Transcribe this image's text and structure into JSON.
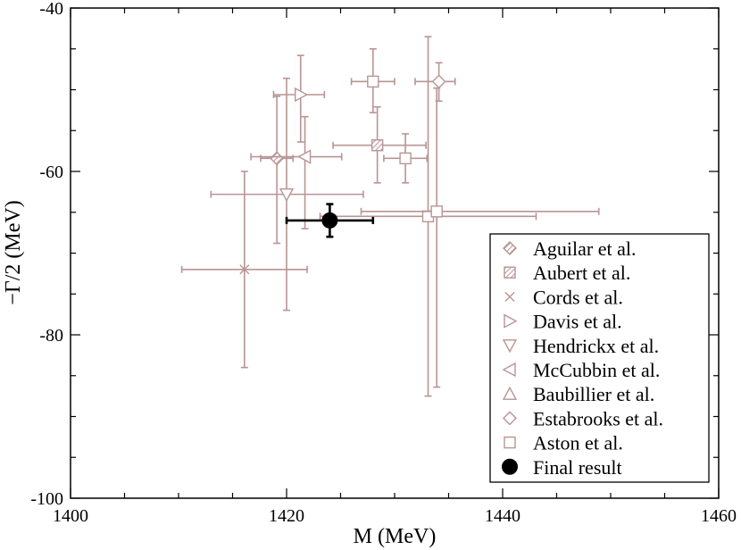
{
  "chart_data": {
    "type": "scatter",
    "xlabel": "M (MeV)",
    "ylabel": "−Γ/2 (MeV)",
    "xlim": [
      1400,
      1460
    ],
    "ylim": [
      -100,
      -40
    ],
    "xticks": [
      1400,
      1420,
      1440,
      1460
    ],
    "yticks": [
      -100,
      -80,
      -60,
      -40
    ],
    "grid": false,
    "legend_position": "bottom-right",
    "colors": {
      "data": "#b99494",
      "final": "#000000"
    },
    "series": [
      {
        "name": "Aguilar et al.",
        "marker": "diamond-hatched",
        "points": [
          {
            "x": 1419.1,
            "y": -58.4,
            "xerr": [
              1.5,
              1.5
            ],
            "yerr": [
              7.6,
              10.4
            ]
          }
        ]
      },
      {
        "name": "Aubert et al.",
        "marker": "square-hatched",
        "points": [
          {
            "x": 1428.4,
            "y": -56.8,
            "xerr": [
              4.1,
              4.5
            ],
            "yerr": [
              4.7,
              4.6
            ]
          }
        ]
      },
      {
        "name": "Cords et al.",
        "marker": "x",
        "points": [
          {
            "x": 1416.1,
            "y": -72.0,
            "xerr": [
              5.8,
              5.8
            ],
            "yerr": [
              12.0,
              12.0
            ]
          }
        ]
      },
      {
        "name": "Davis et al.",
        "marker": "triangle-right",
        "points": [
          {
            "x": 1421.3,
            "y": -50.6,
            "xerr": [
              2.5,
              2.2
            ],
            "yerr": [
              4.8,
              5.8
            ]
          }
        ]
      },
      {
        "name": "Hendrickx et al.",
        "marker": "triangle-down",
        "points": [
          {
            "x": 1420.0,
            "y": -62.8,
            "xerr": [
              7.0,
              7.1
            ],
            "yerr": [
              14.2,
              14.2
            ]
          }
        ]
      },
      {
        "name": "McCubbin et al.",
        "marker": "triangle-left",
        "points": [
          {
            "x": 1421.7,
            "y": -58.2,
            "xerr": [
              5.0,
              3.4
            ],
            "yerr": [
              4.9,
              8.8
            ]
          }
        ]
      },
      {
        "name": "Baubillier et al.",
        "marker": "triangle-up",
        "points": []
      },
      {
        "name": "Estabrooks et al.",
        "marker": "diamond",
        "points": [
          {
            "x": 1434.1,
            "y": -49.0,
            "xerr": [
              2.2,
              1.5
            ],
            "yerr": [
              2.3,
              2.4
            ]
          }
        ]
      },
      {
        "name": "Aston et al.",
        "marker": "square",
        "points": [
          {
            "x": 1428.0,
            "y": -49.0,
            "xerr": [
              2.0,
              2.0
            ],
            "yerr": [
              4.0,
              3.8
            ]
          },
          {
            "x": 1431.0,
            "y": -58.4,
            "xerr": [
              2.0,
              2.0
            ],
            "yerr": [
              3.0,
              3.0
            ]
          },
          {
            "x": 1433.1,
            "y": -65.5,
            "xerr": [
              10.0,
              10.0
            ],
            "yerr": [
              22.0,
              22.0
            ]
          },
          {
            "x": 1433.9,
            "y": -64.9,
            "xerr": [
              7.0,
              15.0
            ],
            "yerr": [
              15.1,
              21.5
            ]
          }
        ]
      },
      {
        "name": "Final result",
        "marker": "circle-filled",
        "points": [
          {
            "x": 1424.0,
            "y": -66.0,
            "xerr": [
              4.0,
              4.0
            ],
            "yerr": [
              2.0,
              2.0
            ]
          }
        ]
      }
    ]
  }
}
